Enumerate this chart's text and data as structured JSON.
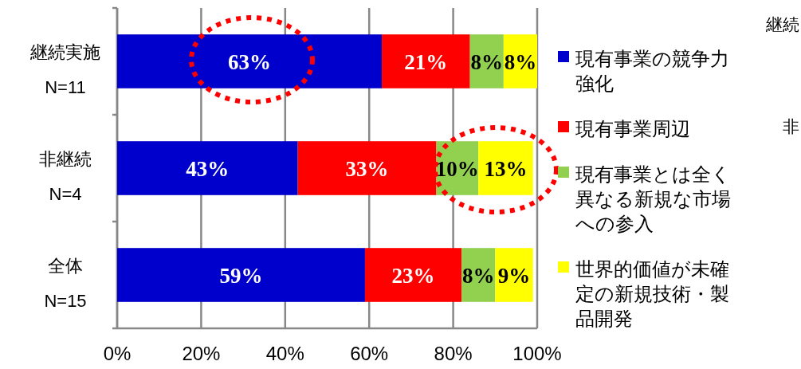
{
  "chart_data": {
    "type": "bar",
    "orientation": "horizontal",
    "stacked": true,
    "legend": "right",
    "grid": "x",
    "categories": [
      "継続実施\nN=11",
      "非継続\nN=4",
      "全体\nN=15"
    ],
    "series": [
      {
        "name": "現有事業の競争力強化",
        "color": "#0000cc",
        "values": [
          63,
          43,
          59
        ],
        "value_labels": [
          "63%",
          "43%",
          "59%"
        ]
      },
      {
        "name": "現有事業周辺",
        "color": "#ff0000",
        "values": [
          21,
          33,
          23
        ],
        "value_labels": [
          "21%",
          "33%",
          "23%"
        ]
      },
      {
        "name": "現有事業とは全く異なる新規な市場への参入",
        "color": "#92d050",
        "values": [
          8,
          10,
          8
        ],
        "value_labels": [
          "8%",
          "10%",
          "8%"
        ]
      },
      {
        "name": "世界的価値が未確定の新規技術・製品開発",
        "color": "#ffff00",
        "values": [
          8,
          13,
          9
        ],
        "value_labels": [
          "8%",
          "13%",
          "9%"
        ]
      }
    ],
    "xlim": [
      0,
      100
    ],
    "xticks": [
      {
        "value": 0,
        "label": "0%"
      },
      {
        "value": 20,
        "label": "20%"
      },
      {
        "value": 40,
        "label": "40%"
      },
      {
        "value": 60,
        "label": "60%"
      },
      {
        "value": 80,
        "label": "80%"
      },
      {
        "value": 100,
        "label": "100%"
      }
    ],
    "annotations": [
      "継続",
      "非"
    ]
  }
}
